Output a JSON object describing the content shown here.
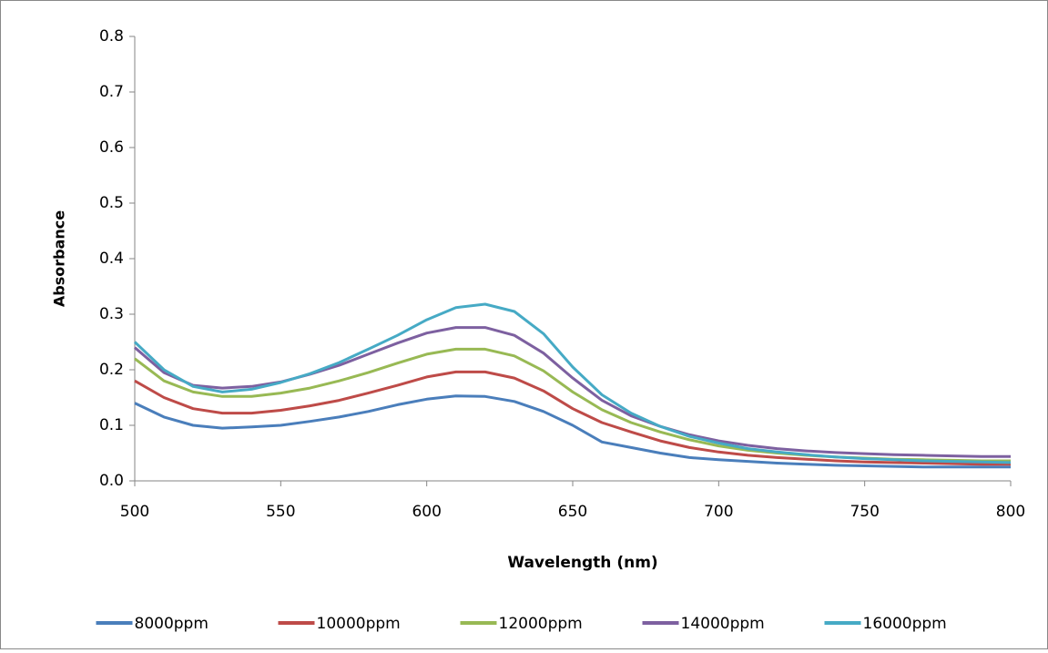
{
  "chart_data": {
    "type": "line",
    "x_label": "Wavelength (nm)",
    "y_label": "Absorbance",
    "x": [
      500,
      510,
      520,
      530,
      540,
      550,
      560,
      570,
      580,
      590,
      600,
      610,
      620,
      630,
      640,
      650,
      660,
      670,
      680,
      690,
      700,
      710,
      720,
      730,
      740,
      750,
      760,
      770,
      780,
      790,
      800
    ],
    "series": [
      {
        "name": "8000ppm",
        "color": "#4a7ebb",
        "values": [
          0.14,
          0.115,
          0.1,
          0.095,
          0.097,
          0.1,
          0.107,
          0.115,
          0.125,
          0.137,
          0.147,
          0.153,
          0.152,
          0.143,
          0.125,
          0.1,
          0.07,
          0.06,
          0.05,
          0.042,
          0.038,
          0.035,
          0.032,
          0.03,
          0.028,
          0.027,
          0.026,
          0.025,
          0.025,
          0.025,
          0.025
        ]
      },
      {
        "name": "10000ppm",
        "color": "#be4b48",
        "values": [
          0.18,
          0.15,
          0.13,
          0.122,
          0.122,
          0.127,
          0.135,
          0.145,
          0.158,
          0.172,
          0.187,
          0.196,
          0.196,
          0.185,
          0.162,
          0.13,
          0.105,
          0.088,
          0.072,
          0.06,
          0.052,
          0.046,
          0.042,
          0.039,
          0.036,
          0.034,
          0.033,
          0.032,
          0.031,
          0.03,
          0.03
        ]
      },
      {
        "name": "12000ppm",
        "color": "#98b954",
        "values": [
          0.22,
          0.18,
          0.16,
          0.152,
          0.152,
          0.158,
          0.167,
          0.18,
          0.195,
          0.212,
          0.228,
          0.237,
          0.237,
          0.225,
          0.198,
          0.16,
          0.128,
          0.105,
          0.088,
          0.074,
          0.063,
          0.055,
          0.05,
          0.046,
          0.043,
          0.041,
          0.039,
          0.038,
          0.037,
          0.036,
          0.036
        ]
      },
      {
        "name": "14000ppm",
        "color": "#7d60a0",
        "values": [
          0.24,
          0.195,
          0.172,
          0.167,
          0.17,
          0.178,
          0.192,
          0.208,
          0.228,
          0.248,
          0.266,
          0.276,
          0.276,
          0.262,
          0.23,
          0.185,
          0.145,
          0.117,
          0.098,
          0.083,
          0.072,
          0.064,
          0.058,
          0.054,
          0.051,
          0.049,
          0.047,
          0.046,
          0.045,
          0.044,
          0.044
        ]
      },
      {
        "name": "16000ppm",
        "color": "#46aac5",
        "values": [
          0.25,
          0.2,
          0.17,
          0.16,
          0.165,
          0.177,
          0.193,
          0.213,
          0.237,
          0.262,
          0.29,
          0.312,
          0.318,
          0.305,
          0.265,
          0.205,
          0.155,
          0.122,
          0.098,
          0.08,
          0.068,
          0.058,
          0.052,
          0.047,
          0.043,
          0.04,
          0.038,
          0.036,
          0.035,
          0.034,
          0.033
        ]
      }
    ],
    "xlim": [
      500,
      800
    ],
    "xticks": [
      500,
      550,
      600,
      650,
      700,
      750,
      800
    ],
    "ylim": [
      0,
      0.8
    ],
    "yticks": [
      {
        "value": 0,
        "label": "0.0"
      },
      0.1,
      0.2,
      0.3,
      0.4,
      0.5,
      0.6,
      0.7,
      0.8
    ],
    "grid": false,
    "legend": "bottom"
  }
}
